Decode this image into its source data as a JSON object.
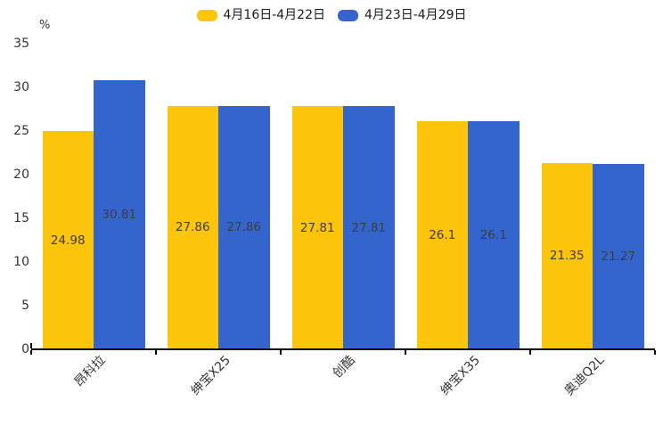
{
  "chart_data": {
    "type": "bar",
    "title": "",
    "categories": [
      "昂科拉",
      "绅宝X25",
      "创酷",
      "绅宝X35",
      "奥迪Q2L"
    ],
    "series": [
      {
        "name": "4月16日-4月22日",
        "color": "#FCC40A",
        "values": [
          24.98,
          27.86,
          27.81,
          26.1,
          21.35
        ]
      },
      {
        "name": "4月23日-4月29日",
        "color": "#3465CD",
        "values": [
          30.81,
          27.86,
          27.81,
          26.1,
          21.27
        ]
      }
    ],
    "xlabel": "",
    "ylabel": "%",
    "ylim": [
      0,
      35
    ],
    "yticks": [
      0,
      5,
      10,
      15,
      20,
      25,
      30,
      35
    ],
    "grid": false,
    "legend_position": "top-center",
    "bar_value_labels": true,
    "colors": {
      "axis": "#000000",
      "tick_label": "#333333",
      "bar_value_label": "#3d3d3d",
      "legend_text": "#1a1a1a",
      "background": "#ffffff"
    }
  }
}
